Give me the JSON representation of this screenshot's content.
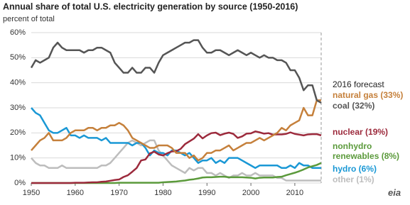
{
  "chart_data": {
    "type": "line",
    "title": "Annual share of total U.S. electricity generation by source (1950-2016)",
    "subtitle": "percent of total",
    "annotation": "2016 forecast",
    "logo": "eia",
    "x": [
      1950,
      1951,
      1952,
      1953,
      1954,
      1955,
      1956,
      1957,
      1958,
      1959,
      1960,
      1961,
      1962,
      1963,
      1964,
      1965,
      1966,
      1967,
      1968,
      1969,
      1970,
      1971,
      1972,
      1973,
      1974,
      1975,
      1976,
      1977,
      1978,
      1979,
      1980,
      1981,
      1982,
      1983,
      1984,
      1985,
      1986,
      1987,
      1988,
      1989,
      1990,
      1991,
      1992,
      1993,
      1994,
      1995,
      1996,
      1997,
      1998,
      1999,
      2000,
      2001,
      2002,
      2003,
      2004,
      2005,
      2006,
      2007,
      2008,
      2009,
      2010,
      2011,
      2012,
      2013,
      2014,
      2015,
      2016
    ],
    "xlim": [
      1950,
      2016
    ],
    "xticks": [
      1950,
      1960,
      1970,
      1980,
      1990,
      2000,
      2010
    ],
    "ylim": [
      0,
      60
    ],
    "yticks": [
      {
        "value": 0,
        "label": "0%"
      },
      {
        "value": 10,
        "label": "10%"
      },
      {
        "value": 20,
        "label": "20%"
      },
      {
        "value": 30,
        "label": "30%"
      },
      {
        "value": 40,
        "label": "40%"
      },
      {
        "value": 50,
        "label": "50%"
      },
      {
        "value": 60,
        "label": "60%"
      }
    ],
    "grid": true,
    "series": [
      {
        "name": "other (1%)",
        "color": "#bdbdbd",
        "values": [
          10,
          8,
          7,
          7,
          6,
          6,
          6,
          7,
          6,
          6,
          6,
          6,
          6,
          6,
          6,
          6,
          7,
          7,
          8,
          10,
          12,
          14,
          16,
          17,
          16,
          15,
          16,
          17,
          17,
          13,
          11,
          9,
          7,
          6,
          5,
          4,
          6,
          5,
          6,
          6,
          4,
          4,
          3,
          4,
          3,
          2,
          3,
          3,
          4,
          3,
          3,
          4,
          3,
          3,
          3,
          3,
          2,
          2,
          1,
          1,
          1,
          1,
          1,
          1,
          1,
          1,
          1
        ]
      },
      {
        "name": "hydro (6%)",
        "color": "#1a98d5",
        "values": [
          30,
          28,
          27,
          24,
          21,
          20,
          20,
          21,
          22,
          19,
          19,
          18,
          19,
          18,
          18,
          18,
          17,
          18,
          16,
          16,
          16,
          16,
          16,
          15,
          16,
          16,
          14,
          11,
          13,
          12,
          12,
          11,
          13,
          13,
          12,
          11,
          12,
          10,
          8,
          9,
          9,
          10,
          8,
          9,
          8,
          10,
          10,
          10,
          9,
          8,
          7,
          6,
          7,
          7,
          7,
          7,
          7,
          6,
          6,
          7,
          6,
          8,
          7,
          7,
          6,
          6,
          6
        ]
      },
      {
        "name": "nonhydro renewables (8%)",
        "color": "#5b9a3b",
        "values": [
          0,
          0,
          0,
          0,
          0,
          0,
          0,
          0,
          0,
          0,
          0,
          0,
          0,
          0,
          0,
          0,
          0,
          0,
          0,
          0,
          0.1,
          0.1,
          0.1,
          0.1,
          0.1,
          0.1,
          0.1,
          0.1,
          0.1,
          0.1,
          0.3,
          0.4,
          0.5,
          0.6,
          0.8,
          1,
          1.3,
          1.5,
          1.8,
          2.2,
          2.3,
          2.3,
          2.4,
          2.5,
          2.5,
          2.3,
          2.3,
          2.3,
          2.3,
          2.2,
          2.1,
          1.8,
          2.1,
          2.2,
          2.2,
          2.2,
          2.4,
          2.5,
          3.1,
          3.6,
          4.1,
          4.7,
          5.4,
          6.2,
          6.7,
          7.2,
          8
        ]
      },
      {
        "name": "nuclear (19%)",
        "color": "#9c2a3c",
        "values": [
          0,
          0,
          0,
          0,
          0,
          0,
          0,
          0,
          0,
          0,
          0.1,
          0.1,
          0.1,
          0.2,
          0.3,
          0.3,
          0.5,
          0.6,
          0.9,
          1.2,
          1.4,
          2.4,
          3.1,
          4.5,
          6,
          9,
          9.4,
          11.8,
          12.5,
          11.4,
          11,
          11.9,
          12.6,
          12.7,
          13.6,
          15.5,
          16.6,
          17.7,
          19.5,
          17.8,
          19,
          19.9,
          20.1,
          19.1,
          19.7,
          20.1,
          19.6,
          18,
          18.6,
          19.7,
          19.8,
          20.6,
          20.2,
          19.7,
          19.9,
          19.3,
          19.4,
          19.4,
          19.6,
          20.2,
          19.6,
          19.3,
          19,
          19.4,
          19.5,
          19.5,
          19
        ]
      },
      {
        "name": "natural gas (33%)",
        "color": "#c5803b",
        "values": [
          13,
          15,
          17,
          18,
          20,
          17,
          17,
          17,
          18,
          20,
          21,
          21,
          21,
          22,
          22,
          21,
          22,
          22,
          23,
          23,
          24,
          23,
          21,
          18,
          17,
          16,
          15,
          14,
          14,
          15,
          15,
          15,
          14,
          12,
          12,
          12,
          10,
          11,
          9,
          10,
          12,
          12,
          13,
          13,
          14,
          15,
          13,
          14,
          15,
          16,
          16,
          17,
          18,
          17,
          18,
          19,
          20,
          22,
          21,
          23,
          24,
          25,
          30,
          27,
          27,
          33,
          33
        ]
      },
      {
        "name": "coal (32%)",
        "color": "#555555",
        "values": [
          46,
          49,
          48,
          49,
          50,
          54,
          56,
          54,
          53,
          53,
          53,
          53,
          52,
          53,
          53,
          54,
          54,
          53,
          52,
          48,
          46,
          44,
          44,
          46,
          44,
          44,
          46,
          46,
          44,
          48,
          51,
          52,
          53,
          54,
          55,
          56,
          56,
          57,
          57,
          54,
          52,
          52,
          53,
          53,
          52,
          51,
          52,
          53,
          52,
          51,
          52,
          51,
          50,
          51,
          50,
          50,
          49,
          49,
          48,
          45,
          45,
          42,
          37,
          39,
          39,
          33,
          32
        ]
      }
    ]
  }
}
